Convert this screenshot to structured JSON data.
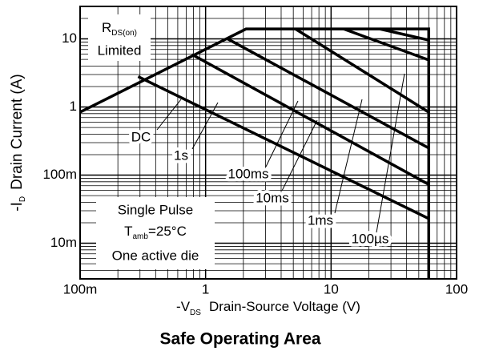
{
  "chart_data": {
    "type": "line",
    "title": "Safe Operating Area",
    "x_label": {
      "main": "-V",
      "sub": "DS",
      "rest": "Drain-Source Voltage (V)"
    },
    "y_label": {
      "main": "-I",
      "sub": "D",
      "rest": "Drain Current (A)"
    },
    "annotations": {
      "limit": {
        "main": "R",
        "sub": "DS(on)",
        "line2": "Limited"
      },
      "conditions": {
        "line1": "Single Pulse",
        "main": "T",
        "sub": "amb",
        "rest": "=25°C",
        "line3": "One active die"
      }
    },
    "log_x": true,
    "log_y": true,
    "grid": true,
    "color": "#000000",
    "xlim": [
      0.1,
      100
    ],
    "ylim": [
      0.003,
      30
    ],
    "xticks": [
      {
        "value": 0.1,
        "label": "100m"
      },
      1,
      10,
      100
    ],
    "yticks": [
      {
        "value": 0.01,
        "label": "10m"
      },
      {
        "value": 0.1,
        "label": "100m"
      },
      1,
      10
    ],
    "boundary": {
      "x": [
        0.1,
        2.1,
        60,
        60
      ],
      "values": [
        0.84,
        14,
        14,
        0.003
      ]
    },
    "series": [
      {
        "name": "DC",
        "x": [
          0.29,
          60
        ],
        "values": [
          2.8,
          0.023
        ]
      },
      {
        "name": "1s",
        "x": [
          0.78,
          60
        ],
        "values": [
          5.9,
          0.073
        ]
      },
      {
        "name": "100ms",
        "x": [
          1.5,
          60
        ],
        "values": [
          10,
          0.25
        ]
      },
      {
        "name": "10ms",
        "x": [
          5.2,
          60
        ],
        "values": [
          14,
          0.84
        ]
      },
      {
        "name": "1ms",
        "x": [
          12.6,
          60
        ],
        "values": [
          14,
          4.9
        ]
      },
      {
        "name": "100µs",
        "x": [
          24.5,
          60
        ],
        "values": [
          14,
          9.6
        ]
      }
    ]
  }
}
